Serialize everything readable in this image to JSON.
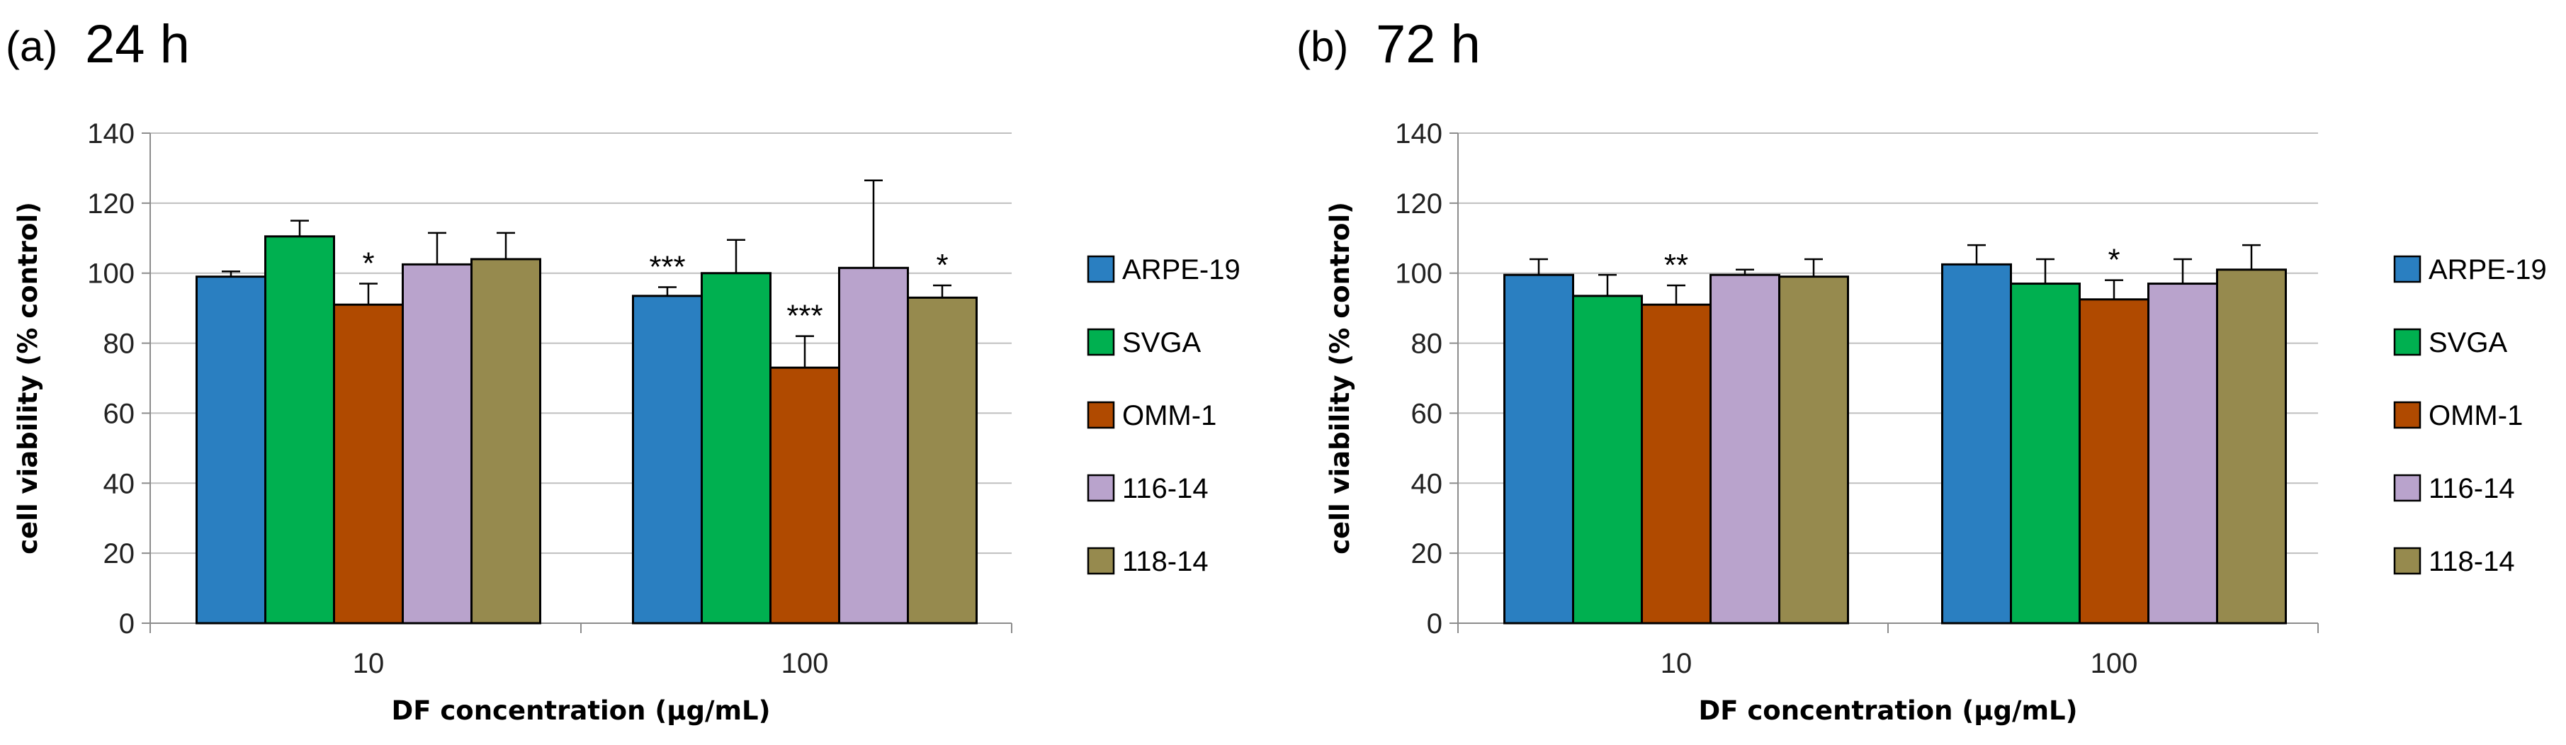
{
  "chart_data": [
    {
      "type": "bar",
      "panel": "(a)",
      "title": "24 h",
      "xlabel": "DF concentration (µg/mL)",
      "ylabel": "cell viability (% control)",
      "ylim": [
        0,
        140
      ],
      "yticks": [
        0,
        20,
        40,
        60,
        80,
        100,
        120,
        140
      ],
      "grid": true,
      "legend_position": "right",
      "categories": [
        "10",
        "100"
      ],
      "series": [
        {
          "name": "ARPE-19",
          "color": "#2a7fc1",
          "values": [
            99,
            93.5
          ],
          "errors": [
            1.5,
            2.5
          ],
          "significance": [
            "",
            "***"
          ]
        },
        {
          "name": "SVGA",
          "color": "#00b050",
          "values": [
            110.5,
            100
          ],
          "errors": [
            4.5,
            9.5
          ],
          "significance": [
            "",
            ""
          ]
        },
        {
          "name": "OMM-1",
          "color": "#b04a00",
          "values": [
            91,
            73
          ],
          "errors": [
            6,
            9
          ],
          "significance": [
            "*",
            "***"
          ]
        },
        {
          "name": "116-14",
          "color": "#b9a3cc",
          "values": [
            102.5,
            101.5
          ],
          "errors": [
            9,
            25
          ],
          "significance": [
            "",
            ""
          ]
        },
        {
          "name": "118-14",
          "color": "#968a4e",
          "values": [
            104,
            93
          ],
          "errors": [
            7.5,
            3.5
          ],
          "significance": [
            "",
            "*"
          ]
        }
      ]
    },
    {
      "type": "bar",
      "panel": "(b)",
      "title": "72 h",
      "xlabel": "DF concentration (µg/mL)",
      "ylabel": "cell viability (% control)",
      "ylim": [
        0,
        140
      ],
      "yticks": [
        0,
        20,
        40,
        60,
        80,
        100,
        120,
        140
      ],
      "grid": true,
      "legend_position": "right",
      "categories": [
        "10",
        "100"
      ],
      "series": [
        {
          "name": "ARPE-19",
          "color": "#2a7fc1",
          "values": [
            99.5,
            102.5
          ],
          "errors": [
            4.5,
            5.5
          ],
          "significance": [
            "",
            ""
          ]
        },
        {
          "name": "SVGA",
          "color": "#00b050",
          "values": [
            93.5,
            97
          ],
          "errors": [
            6,
            7
          ],
          "significance": [
            "",
            ""
          ]
        },
        {
          "name": "OMM-1",
          "color": "#b04a00",
          "values": [
            91,
            92.5
          ],
          "errors": [
            5.5,
            5.5
          ],
          "significance": [
            "**",
            "*"
          ]
        },
        {
          "name": "116-14",
          "color": "#b9a3cc",
          "values": [
            99.5,
            97
          ],
          "errors": [
            1.5,
            7
          ],
          "significance": [
            "",
            ""
          ]
        },
        {
          "name": "118-14",
          "color": "#968a4e",
          "values": [
            99,
            101
          ],
          "errors": [
            5,
            7
          ],
          "significance": [
            "",
            ""
          ]
        }
      ]
    }
  ]
}
